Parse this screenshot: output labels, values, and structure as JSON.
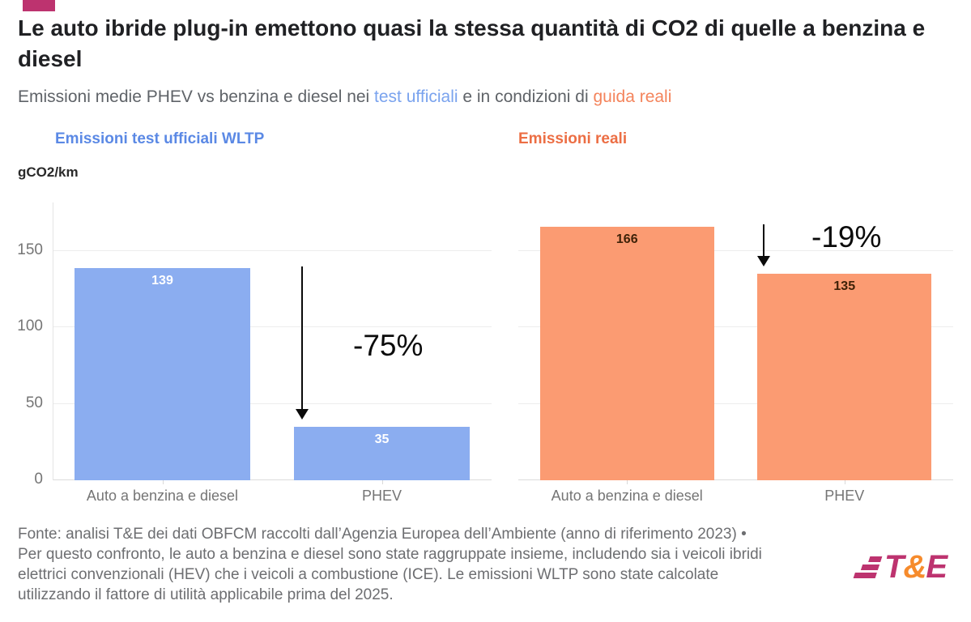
{
  "header": {
    "title": "Le auto ibride plug-in emettono quasi la stessa quantità di CO2 di quelle a benzina e diesel",
    "subtitle_prefix": "Emissioni medie PHEV vs benzina e diesel nei ",
    "subtitle_official": "test ufficiali",
    "subtitle_mid": " e in condizioni di ",
    "subtitle_real": "guida reali"
  },
  "y_axis": {
    "unit_label": "gCO2/km",
    "tick_labels": [
      "150",
      "100",
      "50",
      "0"
    ]
  },
  "chart_data": [
    {
      "type": "bar",
      "title": "Emissioni test ufficiali WLTP",
      "categories": [
        "Auto a benzina e diesel",
        "PHEV"
      ],
      "values": [
        139,
        35
      ],
      "delta_annotation": "-75%",
      "ylabel": "gCO2/km",
      "ylim": [
        0,
        182
      ],
      "yticks": [
        0,
        50,
        100,
        150
      ],
      "grid": true,
      "legend_position": "none",
      "bar_color": "#8badf0",
      "value_label_color": "#ffffff",
      "title_color": "#5b89e5"
    },
    {
      "type": "bar",
      "title": "Emissioni reali",
      "categories": [
        "Auto a benzina e diesel",
        "PHEV"
      ],
      "values": [
        166,
        135
      ],
      "delta_annotation": "-19%",
      "ylabel": "gCO2/km",
      "ylim": [
        0,
        182
      ],
      "yticks": [
        0,
        50,
        100,
        150
      ],
      "grid": true,
      "legend_position": "none",
      "bar_color": "#fb9b72",
      "value_label_color": "#3f2208",
      "title_color": "#ec6e44"
    }
  ],
  "footer": {
    "lines": [
      "Fonte: analisi T&E dei dati OBFCM raccolti dall’Agenzia Europea dell’Ambiente (anno di riferimento 2023) •",
      "Per questo confronto, le auto a benzina e diesel sono state raggruppate insieme, includendo sia i veicoli ibridi",
      "elettrici convenzionali (HEV) che i veicoli a combustione (ICE). Le emissioni WLTP sono state calcolate",
      "utilizzando il fattore di utilità applicabile prima del 2025."
    ]
  },
  "brand": {
    "logo": {
      "t": "T",
      "amp": "&",
      "e": "E"
    },
    "accent_magenta": "#bd336f",
    "accent_orange_amp": "#f68b2c"
  },
  "colors": {
    "blue_bar": "#8badf0",
    "orange_bar": "#fb9b72",
    "blue_header": "#5b89e5",
    "orange_header": "#ec6e44",
    "subtitle_blue": "#7aa3ee",
    "subtitle_orange": "#f4845c"
  }
}
